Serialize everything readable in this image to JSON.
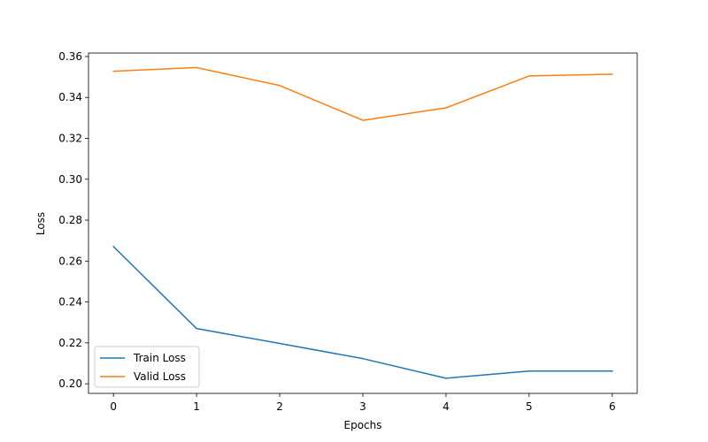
{
  "chart_data": {
    "type": "line",
    "title": "",
    "xlabel": "Epochs",
    "ylabel": "Loss",
    "x": [
      0,
      1,
      2,
      3,
      4,
      5,
      6
    ],
    "xticks": [
      "0",
      "1",
      "2",
      "3",
      "4",
      "5",
      "6"
    ],
    "yticks": [
      "0.20",
      "0.22",
      "0.24",
      "0.26",
      "0.28",
      "0.30",
      "0.32",
      "0.34",
      "0.36"
    ],
    "xlim": [
      -0.3,
      6.3
    ],
    "ylim": [
      0.1953,
      0.3617
    ],
    "grid": false,
    "legend_position": "lower-left",
    "series": [
      {
        "name": "Train Loss",
        "color": "#1f77b4",
        "values": [
          0.2671,
          0.227,
          0.2197,
          0.2123,
          0.2027,
          0.2062,
          0.2062
        ]
      },
      {
        "name": "Valid Loss",
        "color": "#ff7f0e",
        "values": [
          0.3528,
          0.3546,
          0.3458,
          0.3288,
          0.3349,
          0.3505,
          0.3514
        ]
      }
    ]
  }
}
